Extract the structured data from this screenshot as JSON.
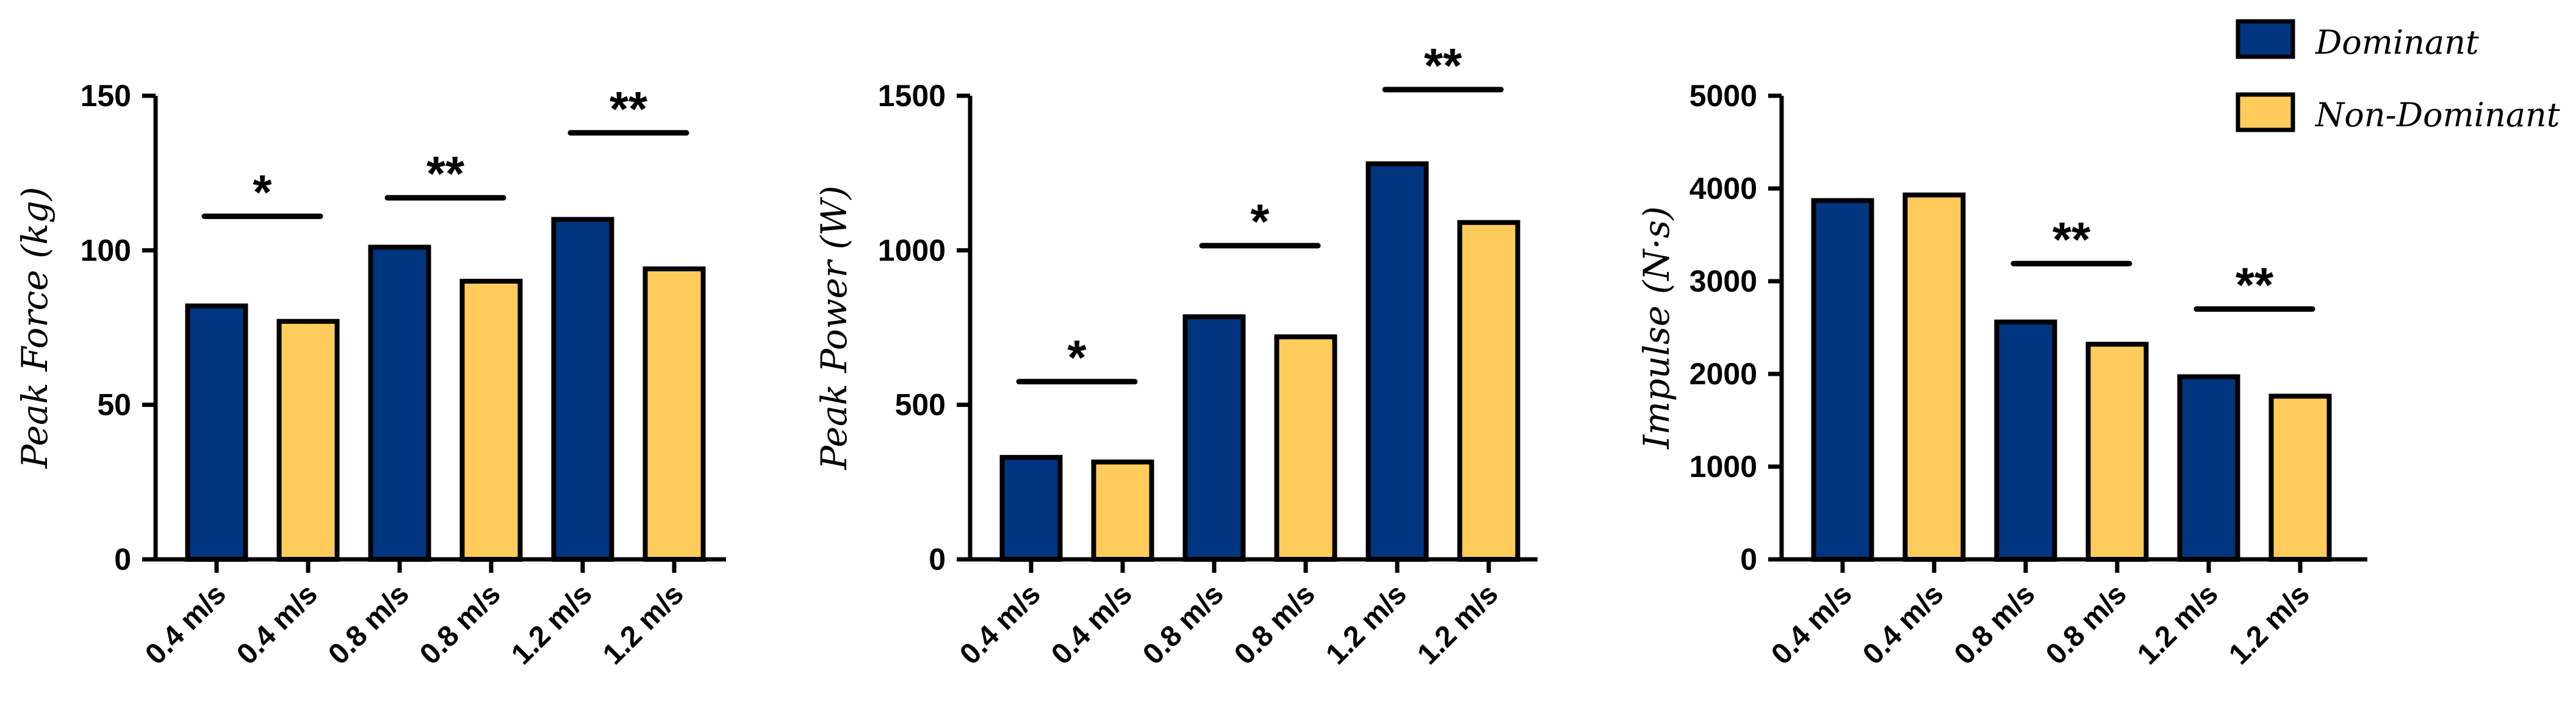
{
  "legend": {
    "items": [
      {
        "label": "Dominant",
        "color": "#003580"
      },
      {
        "label": "Non-Dominant",
        "color": "#FFCC5C"
      }
    ]
  },
  "chart_data": [
    {
      "type": "bar",
      "ylabel": "Peak Force (kg)",
      "ylim": [
        0,
        150
      ],
      "yticks": [
        "0",
        "50",
        "100",
        "150"
      ],
      "categories": [
        "0.4 m/s",
        "0.4 m/s",
        "0.8 m/s",
        "0.8 m/s",
        "1.2 m/s",
        "1.2 m/s"
      ],
      "values": [
        82,
        77,
        101,
        90,
        110,
        94
      ],
      "bar_colors": [
        "#003580",
        "#FFCC5C",
        "#003580",
        "#FFCC5C",
        "#003580",
        "#FFCC5C"
      ],
      "series_labels": [
        "Dominant",
        "Non-Dominant",
        "Dominant",
        "Non-Dominant",
        "Dominant",
        "Non-Dominant"
      ],
      "significance": [
        {
          "pair": [
            0,
            1
          ],
          "label": "*",
          "y": 111
        },
        {
          "pair": [
            2,
            3
          ],
          "label": "**",
          "y": 117
        },
        {
          "pair": [
            4,
            5
          ],
          "label": "**",
          "y": 138
        }
      ]
    },
    {
      "type": "bar",
      "ylabel": "Peak Power (W)",
      "ylim": [
        0,
        1500
      ],
      "yticks": [
        "0",
        "500",
        "1000",
        "1500"
      ],
      "categories": [
        "0.4 m/s",
        "0.4 m/s",
        "0.8 m/s",
        "0.8 m/s",
        "1.2 m/s",
        "1.2 m/s"
      ],
      "values": [
        330,
        315,
        785,
        720,
        1280,
        1090
      ],
      "bar_colors": [
        "#003580",
        "#FFCC5C",
        "#003580",
        "#FFCC5C",
        "#003580",
        "#FFCC5C"
      ],
      "series_labels": [
        "Dominant",
        "Non-Dominant",
        "Dominant",
        "Non-Dominant",
        "Dominant",
        "Non-Dominant"
      ],
      "significance": [
        {
          "pair": [
            0,
            1
          ],
          "label": "*",
          "y": 575
        },
        {
          "pair": [
            2,
            3
          ],
          "label": "*",
          "y": 1015
        },
        {
          "pair": [
            4,
            5
          ],
          "label": "**",
          "y": 1520
        }
      ]
    },
    {
      "type": "bar",
      "ylabel": "Impulse (N·s)",
      "ylim": [
        0,
        5000
      ],
      "yticks": [
        "0",
        "1000",
        "2000",
        "3000",
        "4000",
        "5000"
      ],
      "categories": [
        "0.4 m/s",
        "0.4 m/s",
        "0.8 m/s",
        "0.8 m/s",
        "1.2 m/s",
        "1.2 m/s"
      ],
      "values": [
        3870,
        3930,
        2560,
        2320,
        1970,
        1760
      ],
      "bar_colors": [
        "#003580",
        "#FFCC5C",
        "#003580",
        "#FFCC5C",
        "#003580",
        "#FFCC5C"
      ],
      "series_labels": [
        "Dominant",
        "Non-Dominant",
        "Dominant",
        "Non-Dominant",
        "Dominant",
        "Non-Dominant"
      ],
      "significance": [
        {
          "pair": [
            2,
            3
          ],
          "label": "**",
          "y": 3190
        },
        {
          "pair": [
            4,
            5
          ],
          "label": "**",
          "y": 2700
        }
      ]
    }
  ]
}
